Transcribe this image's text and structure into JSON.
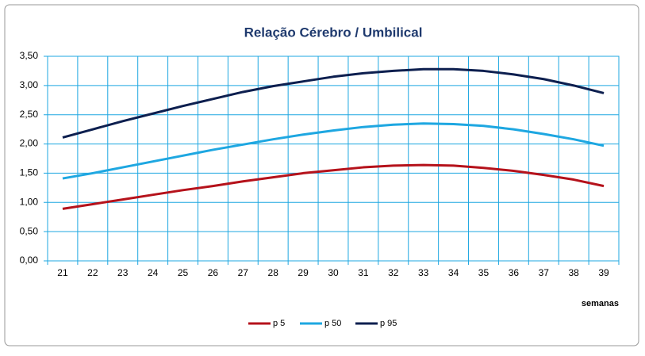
{
  "chart_data": {
    "type": "line",
    "title": "Relação Cérebro / Umbilical",
    "x_label": "semanas",
    "categories": [
      "21",
      "22",
      "23",
      "24",
      "25",
      "26",
      "27",
      "28",
      "29",
      "30",
      "31",
      "32",
      "33",
      "34",
      "35",
      "36",
      "37",
      "38",
      "39"
    ],
    "series": [
      {
        "name": "p 5",
        "color": "#b5121b",
        "values": [
          0.89,
          0.97,
          1.05,
          1.13,
          1.21,
          1.28,
          1.36,
          1.43,
          1.5,
          1.55,
          1.6,
          1.63,
          1.64,
          1.63,
          1.59,
          1.54,
          1.47,
          1.39,
          1.28
        ]
      },
      {
        "name": "p 50",
        "color": "#1ea7e1",
        "values": [
          1.41,
          1.5,
          1.6,
          1.7,
          1.8,
          1.9,
          1.99,
          2.08,
          2.16,
          2.23,
          2.29,
          2.33,
          2.35,
          2.34,
          2.31,
          2.25,
          2.17,
          2.08,
          1.97
        ]
      },
      {
        "name": "p 95",
        "color": "#0d1f4f",
        "values": [
          2.11,
          2.25,
          2.39,
          2.52,
          2.65,
          2.77,
          2.89,
          2.99,
          3.07,
          3.15,
          3.21,
          3.25,
          3.28,
          3.28,
          3.25,
          3.19,
          3.11,
          3.0,
          2.87
        ]
      }
    ],
    "ylim": [
      0,
      3.5
    ],
    "yticks": [
      {
        "value": 0,
        "label": "0,00"
      },
      {
        "value": 0.5,
        "label": "0,50"
      },
      {
        "value": 1,
        "label": "1,00"
      },
      {
        "value": 1.5,
        "label": "1,50"
      },
      {
        "value": 2,
        "label": "2,00"
      },
      {
        "value": 2.5,
        "label": "2,50"
      },
      {
        "value": 3,
        "label": "3,00"
      },
      {
        "value": 3.5,
        "label": "3,50"
      }
    ],
    "grid": true,
    "legend": "bottom"
  }
}
